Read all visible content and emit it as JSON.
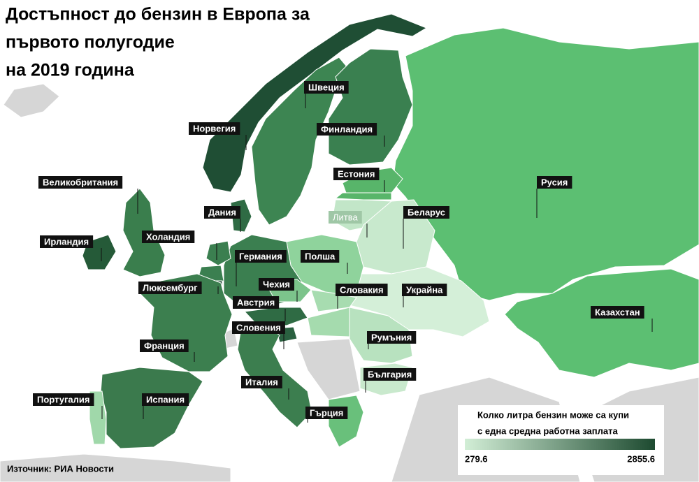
{
  "title": [
    "Достъпност до бензин в Европа за",
    "първото полугодие",
    "на 2019 година"
  ],
  "countries": [
    {
      "label": "Норвегия",
      "color": "#1f4e34"
    },
    {
      "label": "Швеция",
      "color": "#3d8552"
    },
    {
      "label": "Финландия",
      "color": "#3a8050"
    },
    {
      "label": "Русия",
      "color": "#5cbf72"
    },
    {
      "label": "Казахстан",
      "color": "#5cbf72"
    },
    {
      "label": "Естония",
      "color": "#58b56a"
    },
    {
      "label": "Литва",
      "color": "#c2e6c8"
    },
    {
      "label": "Беларус",
      "color": "#c8e9cd"
    },
    {
      "label": "Украйна",
      "color": "#d4efd8"
    },
    {
      "label": "Полша",
      "color": "#8fd39c"
    },
    {
      "label": "Германия",
      "color": "#3b7f50"
    },
    {
      "label": "Дания",
      "color": "#2f6b44"
    },
    {
      "label": "Холандия",
      "color": "#3b7f50"
    },
    {
      "label": "Люксембург",
      "color": "#1f4e34"
    },
    {
      "label": "Франция",
      "color": "#3c7f4f"
    },
    {
      "label": "Испания",
      "color": "#3b7a4d"
    },
    {
      "label": "Португалия",
      "color": "#a0d8aa"
    },
    {
      "label": "Великобритания",
      "color": "#3a7e4d"
    },
    {
      "label": "Ирландия",
      "color": "#255a38"
    },
    {
      "label": "Чехия",
      "color": "#7cc48b"
    },
    {
      "label": "Австрия",
      "color": "#2f6b44"
    },
    {
      "label": "Словакия",
      "color": "#a7dcb0"
    },
    {
      "label": "Словения",
      "color": "#2a6040"
    },
    {
      "label": "Румъния",
      "color": "#b8e2bf"
    },
    {
      "label": "България",
      "color": "#c9e9cd"
    },
    {
      "label": "Италия",
      "color": "#3c7e4f"
    },
    {
      "label": "Гърция",
      "color": "#69c07b"
    }
  ],
  "legend": {
    "title": [
      "Колко литра бензин може са купи",
      "с една средна работна заплата"
    ],
    "min": 279.6,
    "max": 2855.6,
    "min_color": "#d2eed6",
    "max_color": "#1d4a30"
  },
  "source": "Източник: РИА Новости"
}
